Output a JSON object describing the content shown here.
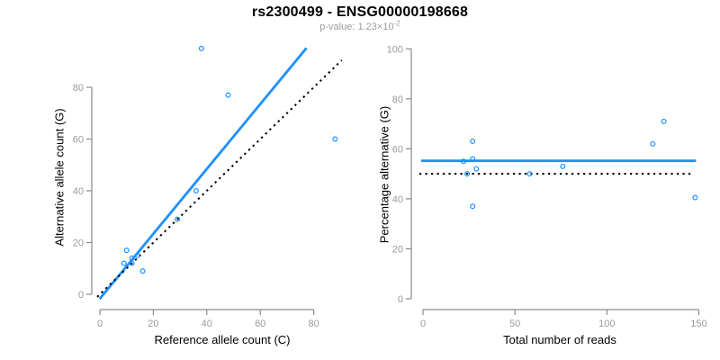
{
  "header": {
    "title": "rs2300499 - ENSG00000198668",
    "pvalue": {
      "label": "p-value:",
      "mantissa": "1.23",
      "times": "×",
      "base": "10",
      "exponent": "-2"
    }
  },
  "colors": {
    "accent_blue": "#1E90FF",
    "axis_gray": "#8a8a8a",
    "tick_label_gray": "#9b9b9b",
    "reference_black": "#000000"
  },
  "chart_data": [
    {
      "type": "scatter",
      "panel": "left",
      "xlabel": "Reference allele count (C)",
      "ylabel": "Alternative allele count (G)",
      "xticks": [
        0,
        20,
        40,
        60,
        80
      ],
      "yticks": [
        0,
        20,
        40,
        60,
        80
      ],
      "xlim": [
        -3.5,
        93
      ],
      "ylim": [
        -4,
        99
      ],
      "grid": false,
      "legend": null,
      "points": [
        [
          10,
          17
        ],
        [
          12,
          14
        ],
        [
          14,
          15
        ],
        [
          9,
          12
        ],
        [
          12,
          12
        ],
        [
          16,
          9
        ],
        [
          29,
          29
        ],
        [
          36,
          40
        ],
        [
          48,
          77
        ],
        [
          38,
          95
        ],
        [
          88,
          60
        ]
      ],
      "lines": [
        {
          "name": "regression-line",
          "style": "solid",
          "color": "accent_blue",
          "x1": -0.1,
          "y1": -1.8,
          "x2": 77.3,
          "y2": 95.2
        },
        {
          "name": "identity-line",
          "style": "dotted",
          "color": "reference_black",
          "x1": -1.0,
          "y1": -1.0,
          "x2": 90.5,
          "y2": 90.5
        }
      ]
    },
    {
      "type": "scatter",
      "panel": "right",
      "xlabel": "Total number of reads",
      "ylabel": "Percentage alternative (G)",
      "xticks": [
        0,
        50,
        100,
        150
      ],
      "yticks": [
        0,
        20,
        40,
        60,
        80,
        100
      ],
      "xlim": [
        -6,
        156
      ],
      "ylim": [
        -4,
        104
      ],
      "grid": false,
      "legend": null,
      "points": [
        [
          27,
          63
        ],
        [
          27,
          56
        ],
        [
          29,
          52
        ],
        [
          22,
          55
        ],
        [
          24,
          50
        ],
        [
          27,
          37
        ],
        [
          58,
          50
        ],
        [
          76,
          53
        ],
        [
          125,
          62
        ],
        [
          131,
          71
        ],
        [
          148,
          40.5
        ]
      ],
      "lines": [
        {
          "name": "mean-percentage-line",
          "style": "solid",
          "color": "accent_blue",
          "x1": -1.0,
          "y1": 55.2,
          "x2": 148.5,
          "y2": 55.2
        },
        {
          "name": "fifty-percent-line",
          "style": "dotted",
          "color": "reference_black",
          "x1": -2.0,
          "y1": 50,
          "x2": 146,
          "y2": 50
        }
      ]
    }
  ]
}
